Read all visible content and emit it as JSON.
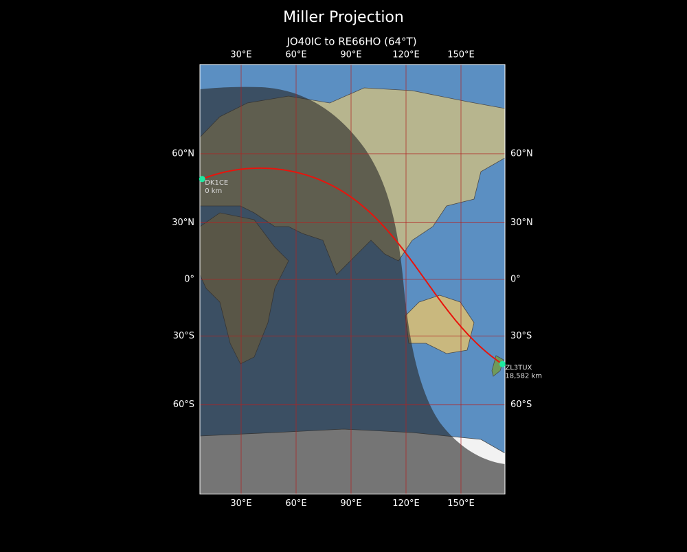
{
  "chart_data": {
    "type": "map",
    "projection": "miller",
    "title": "Miller Projection",
    "subtitle": "JO40IC to RE66HO (64°T)",
    "xlim": [
      7.5,
      174
    ],
    "ylim": [
      -85,
      85
    ],
    "xticks": [
      {
        "value": 30,
        "label": "30°E"
      },
      {
        "value": 60,
        "label": "60°E"
      },
      {
        "value": 90,
        "label": "90°E"
      },
      {
        "value": 120,
        "label": "120°E"
      },
      {
        "value": 150,
        "label": "150°E"
      }
    ],
    "yticks": [
      {
        "value": -60,
        "label": "60°S"
      },
      {
        "value": -30,
        "label": "30°S"
      },
      {
        "value": 0,
        "label": "0°"
      },
      {
        "value": 30,
        "label": "30°N"
      },
      {
        "value": 60,
        "label": "60°N"
      }
    ],
    "grid": true,
    "grid_color": "#b22222",
    "path_color": "#e8140c",
    "marker_color": "#1de9a0",
    "stations": [
      {
        "name": "DK1CE",
        "lat": 50.1,
        "lon": 8.71,
        "distance": 0,
        "distance_label": "0 km"
      },
      {
        "name": "ZL3TUX",
        "lat": -43.4,
        "lon": 172.63,
        "distance": 18582,
        "distance_label": "18,582 km"
      }
    ]
  }
}
